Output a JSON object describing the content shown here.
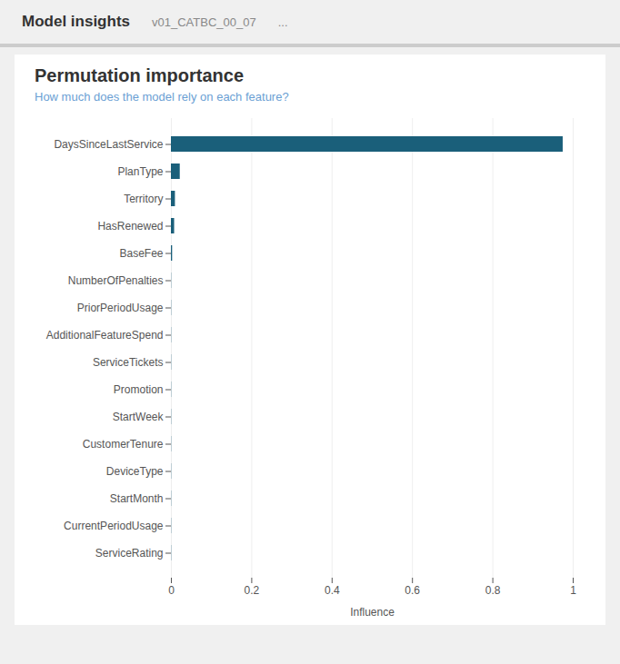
{
  "chart_data": {
    "type": "bar",
    "orientation": "horizontal",
    "title": "Permutation importance",
    "subtitle": "How much does the model rely on each feature?",
    "annotations": [
      "Model insights",
      "v01_CATBC_00_07",
      "..."
    ],
    "xlabel": "Influence",
    "categories": [
      "DaysSinceLastService",
      "PlanType",
      "Territory",
      "HasRenewed",
      "BaseFee",
      "NumberOfPenalties",
      "PriorPeriodUsage",
      "AdditionalFeatureSpend",
      "ServiceTickets",
      "Promotion",
      "StartWeek",
      "CustomerTenure",
      "DeviceType",
      "StartMonth",
      "CurrentPeriodUsage",
      "ServiceRating"
    ],
    "values": [
      0.975,
      0.022,
      0.01,
      0.008,
      0.003,
      0.0005,
      0.0005,
      0.0005,
      0.0005,
      0.0005,
      0.0005,
      0.0005,
      0.0005,
      0.0005,
      0.0005,
      0.0005
    ],
    "color": "#1a5f7a",
    "xlim": [
      0,
      1.0
    ],
    "xticks": [
      0,
      0.2,
      0.4,
      0.6,
      0.8,
      1
    ],
    "grid": true
  }
}
